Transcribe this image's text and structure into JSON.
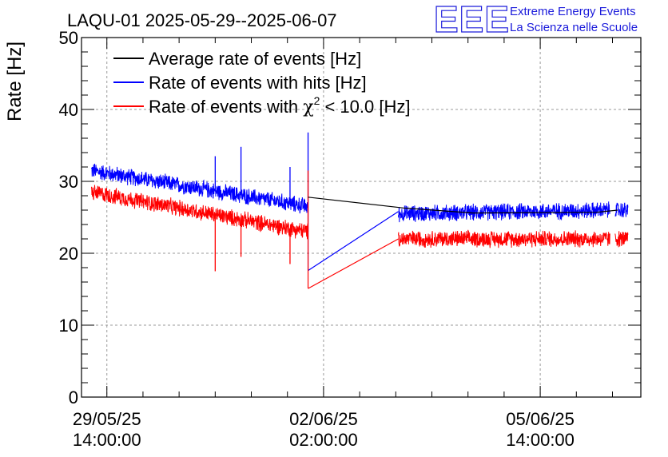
{
  "header": {
    "title": "LAQU-01 2025-05-29--2025-06-07",
    "logo_mark": "EEE",
    "logo_line1": "Extreme Energy Events",
    "logo_line2": "La Scienza nelle Scuole"
  },
  "colors": {
    "average": "#000000",
    "hits": "#0000ff",
    "chi2": "#ff0000",
    "logo": "#1a1adb",
    "grid": "#9a9a9a"
  },
  "chart_data": {
    "type": "line",
    "title": "LAQU-01 2025-05-29--2025-06-07",
    "ylabel": "Rate [Hz]",
    "ylim": [
      0,
      50
    ],
    "yticks": [
      0,
      10,
      20,
      30,
      40,
      50
    ],
    "xlim": [
      "2025-05-29T04:10:00",
      "2025-06-07T05:00:00"
    ],
    "xticks": [
      {
        "time": "2025-05-29T14:00:00",
        "date": "29/05/25",
        "clock": "14:00:00"
      },
      {
        "time": "2025-06-02T02:00:00",
        "date": "02/06/25",
        "clock": "02:00:00"
      },
      {
        "time": "2025-06-05T14:00:00",
        "date": "05/06/25",
        "clock": "14:00:00"
      }
    ],
    "grid": true,
    "legend_position": "top-left",
    "series": [
      {
        "name": "Average rate of events [Hz]",
        "color": "#000000",
        "points": [
          [
            "2025-06-01T20:00:00",
            27.8
          ],
          [
            "2025-06-03T09:00:00",
            26.3
          ],
          [
            "2025-06-04T12:00:00",
            25.6
          ],
          [
            "2025-06-06T12:00:00",
            25.7
          ],
          [
            "2025-06-06T20:00:00",
            26.0
          ]
        ]
      },
      {
        "name": "Rate of events with hits [Hz]",
        "color": "#0000ff",
        "noise": 1.1,
        "segments": [
          {
            "start": "2025-05-29T08:00:00",
            "end": "2025-06-01T20:00:00",
            "y_start": 31.5,
            "y_end": 26.5
          },
          {
            "start": "2025-06-03T07:00:00",
            "end": "2025-06-06T17:00:00",
            "y_start": 25.5,
            "y_end": 26.0
          },
          {
            "start": "2025-06-06T19:00:00",
            "end": "2025-06-07T00:00:00",
            "y_start": 26.0,
            "y_end": 26.0
          }
        ],
        "gap_line": [
          [
            "2025-06-01T20:00:00",
            17.6
          ],
          [
            "2025-06-03T07:00:00",
            25.8
          ]
        ],
        "spikes": [
          [
            "2025-05-31T08:00:00",
            33.5
          ],
          [
            "2025-05-31T18:00:00",
            34.8
          ],
          [
            "2025-06-01T13:00:00",
            32.0
          ],
          [
            "2025-06-01T20:00:00",
            36.8
          ]
        ]
      },
      {
        "name": "Rate of events with χ² < 10.0 [Hz]",
        "legend_base": "Rate of events with ",
        "legend_chi": "χ",
        "legend_sup": "2",
        "legend_tail": " < 10.0 [Hz]",
        "color": "#ff0000",
        "noise": 1.1,
        "segments": [
          {
            "start": "2025-05-29T08:00:00",
            "end": "2025-06-01T20:00:00",
            "y_start": 28.5,
            "y_end": 23.0
          },
          {
            "start": "2025-06-03T07:00:00",
            "end": "2025-06-06T17:00:00",
            "y_start": 22.0,
            "y_end": 22.0
          },
          {
            "start": "2025-06-06T19:00:00",
            "end": "2025-06-07T00:00:00",
            "y_start": 22.0,
            "y_end": 22.0
          }
        ],
        "gap_line": [
          [
            "2025-06-01T20:00:00",
            15.1
          ],
          [
            "2025-06-03T07:00:00",
            22.0
          ]
        ],
        "spikes": [
          [
            "2025-05-31T08:00:00",
            17.5
          ],
          [
            "2025-05-31T18:00:00",
            19.5
          ],
          [
            "2025-06-01T13:00:00",
            18.5
          ],
          [
            "2025-06-01T20:00:00",
            31.5
          ]
        ]
      }
    ]
  }
}
